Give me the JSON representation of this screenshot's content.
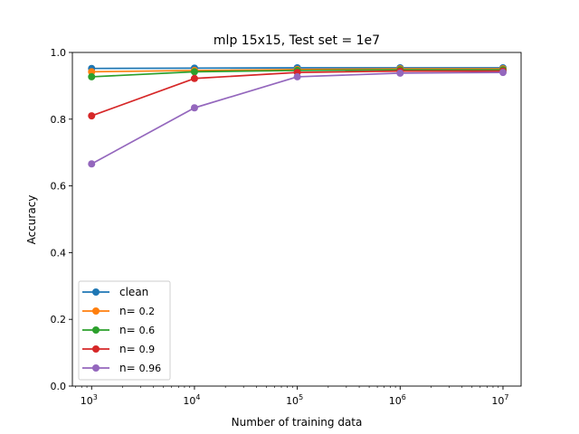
{
  "chart_data": {
    "type": "line",
    "title": "mlp 15x15, Test set = 1e7",
    "xlabel": "Number of training data",
    "ylabel": "Accuracy",
    "xscale": "log",
    "xlim": [
      650,
      15000000
    ],
    "ylim": [
      0.0,
      1.0
    ],
    "grid": false,
    "legend_position": "lower-left",
    "x": [
      1000,
      10000,
      100000,
      1000000,
      10000000
    ],
    "x_tick_labels": [
      {
        "base": "10",
        "exp": "3"
      },
      {
        "base": "10",
        "exp": "4"
      },
      {
        "base": "10",
        "exp": "5"
      },
      {
        "base": "10",
        "exp": "6"
      },
      {
        "base": "10",
        "exp": "7"
      }
    ],
    "y_ticks": [
      "0.0",
      "0.2",
      "0.4",
      "0.6",
      "0.8",
      "1.0"
    ],
    "series": [
      {
        "name": "clean",
        "name_prefix": "clean",
        "name_value": "",
        "color": "#1f77b4",
        "values": [
          0.952,
          0.953,
          0.954,
          0.954,
          0.954
        ]
      },
      {
        "name": "n= 0.2",
        "name_prefix": "n=",
        "name_value": "0.2",
        "color": "#ff7f0e",
        "values": [
          0.942,
          0.946,
          0.949,
          0.951,
          0.951
        ]
      },
      {
        "name": "n= 0.6",
        "name_prefix": "n=",
        "name_value": "0.6",
        "color": "#2ca02c",
        "values": [
          0.927,
          0.942,
          0.946,
          0.948,
          0.948
        ]
      },
      {
        "name": "n= 0.9",
        "name_prefix": "n=",
        "name_value": "0.9",
        "color": "#d62728",
        "values": [
          0.81,
          0.922,
          0.94,
          0.944,
          0.944
        ]
      },
      {
        "name": "n= 0.96",
        "name_prefix": "n=",
        "name_value": "0.96",
        "color": "#9467bd",
        "values": [
          0.666,
          0.834,
          0.927,
          0.938,
          0.94
        ]
      }
    ]
  }
}
